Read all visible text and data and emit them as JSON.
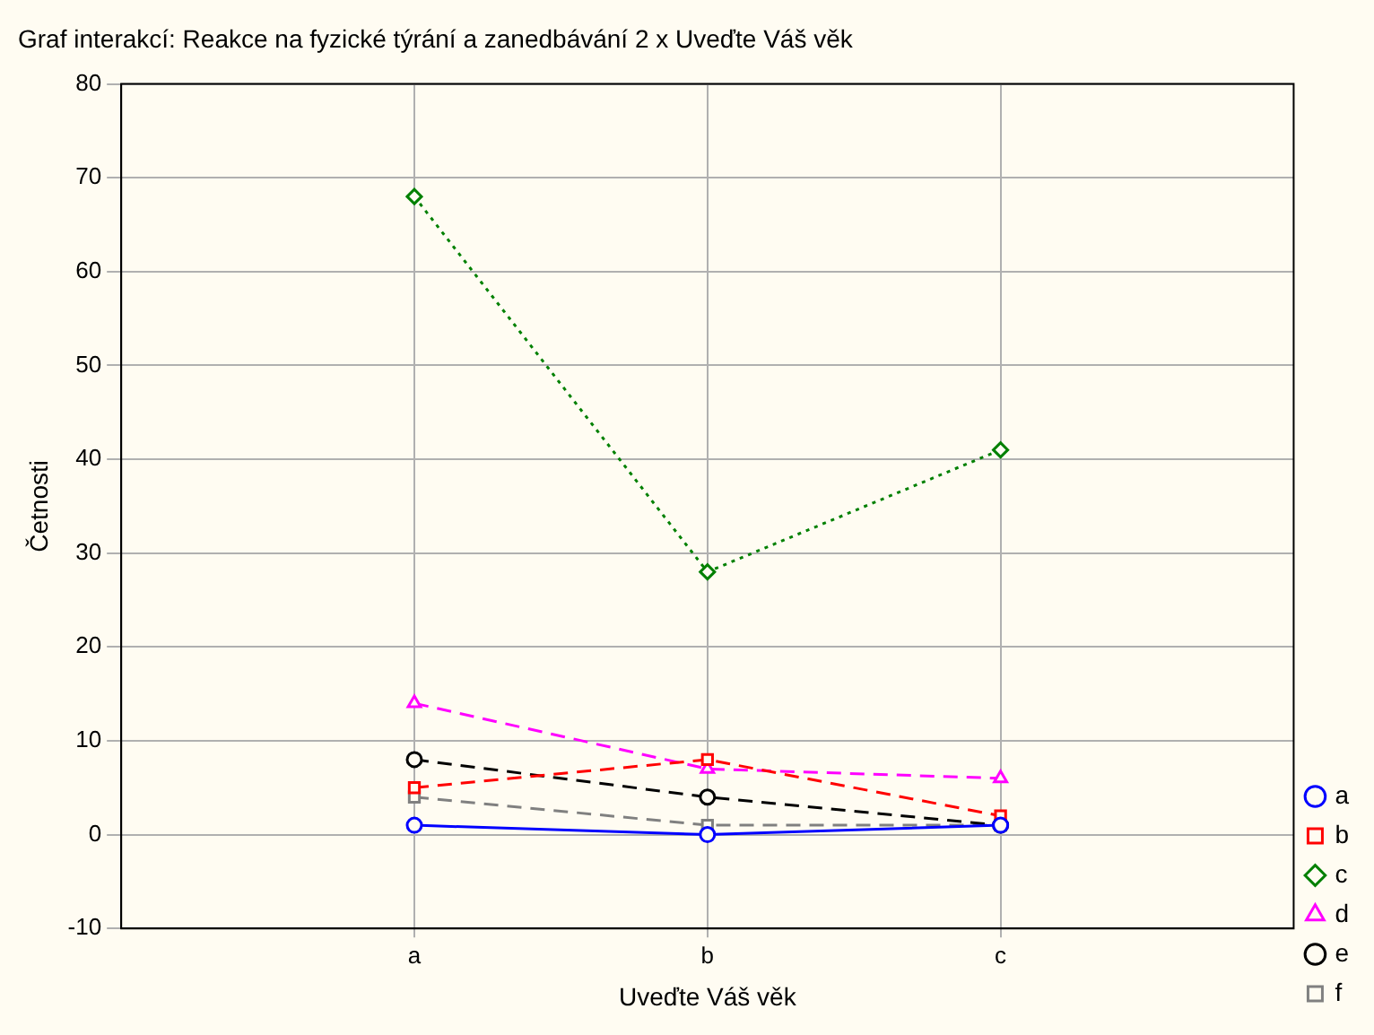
{
  "chart_data": {
    "type": "line",
    "title": "Graf interakcí: Reakce na fyzické týrání a zanedbávání 2 x Uveďte Váš věk",
    "xlabel": "Uveďte Váš věk",
    "ylabel": "Četnosti",
    "categories": [
      "a",
      "b",
      "c"
    ],
    "ylim": [
      -10,
      80
    ],
    "yticks": [
      -10,
      0,
      10,
      20,
      30,
      40,
      50,
      60,
      70,
      80
    ],
    "grid": true,
    "legend": "bottom right",
    "series": [
      {
        "name": "a",
        "color": "#0000ff",
        "values": [
          1,
          0,
          1
        ],
        "marker": "circle",
        "line_style": "solid"
      },
      {
        "name": "b",
        "color": "#ff0000",
        "values": [
          5,
          8,
          2
        ],
        "marker": "square",
        "line_style": "dashed"
      },
      {
        "name": "c",
        "color": "#008000",
        "values": [
          68,
          28,
          41
        ],
        "marker": "diamond",
        "line_style": "dotted"
      },
      {
        "name": "d",
        "color": "#ff00ff",
        "values": [
          14,
          7,
          6
        ],
        "marker": "triangle",
        "line_style": "dashed"
      },
      {
        "name": "e",
        "color": "#000000",
        "values": [
          8,
          4,
          1
        ],
        "marker": "circle",
        "line_style": "dashed"
      },
      {
        "name": "f",
        "color": "#808080",
        "values": [
          4,
          1,
          1
        ],
        "marker": "square",
        "line_style": "dashed"
      }
    ]
  }
}
